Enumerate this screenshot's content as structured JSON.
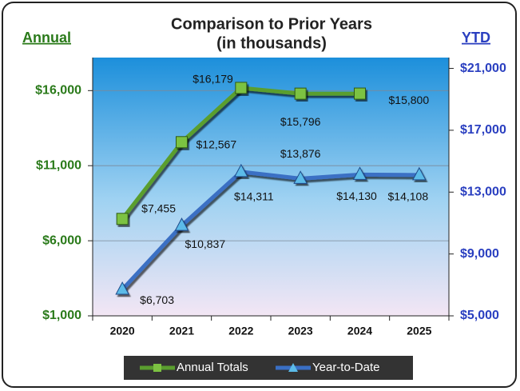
{
  "chart_data": {
    "type": "line",
    "title": "Comparison to Prior Years",
    "subtitle": "(in thousands)",
    "y_label": "Annual",
    "y2_label": "YTD",
    "categories": [
      "2020",
      "2021",
      "2022",
      "2023",
      "2024",
      "2025"
    ],
    "ylim": [
      1000,
      18200
    ],
    "yticks": [
      {
        "value": 1000,
        "label": "$1,000"
      },
      {
        "value": 6000,
        "label": "$6,000"
      },
      {
        "value": 11000,
        "label": "$11,000"
      },
      {
        "value": 16000,
        "label": "$16,000"
      }
    ],
    "y2lim": [
      5000,
      21700
    ],
    "y2ticks": [
      {
        "value": 5000,
        "label": "$5,000"
      },
      {
        "value": 9000,
        "label": "$9,000"
      },
      {
        "value": 13000,
        "label": "$13,000"
      },
      {
        "value": 17000,
        "label": "$17,000"
      },
      {
        "value": 21000,
        "label": "$21,000"
      }
    ],
    "grid": true,
    "legend": "bottom",
    "series": [
      {
        "name": "Annual Totals",
        "color": "#5a9e2f",
        "marker_color": "#7cc242",
        "marker": "square",
        "values": [
          7455,
          12567,
          16179,
          15796,
          15800,
          null
        ],
        "value_labels": [
          "$7,455",
          "$12,567",
          "$16,179",
          "$15,796",
          "$15,800",
          null
        ]
      },
      {
        "name": "Year-to-Date",
        "color": "#3a6fc4",
        "marker_color": "#5bbbe8",
        "marker": "triangle",
        "axis": "y2",
        "values": [
          6703,
          10837,
          14311,
          13876,
          14130,
          14108
        ],
        "value_labels": [
          "$6,703",
          "$10,837",
          "$14,311",
          "$13,876",
          "$14,130",
          "$14,108"
        ]
      }
    ]
  }
}
